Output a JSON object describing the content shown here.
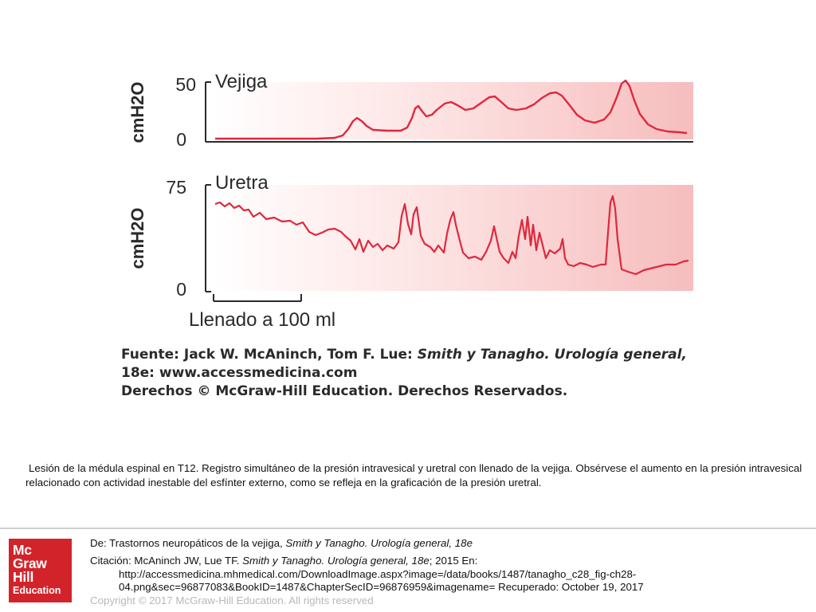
{
  "figure": {
    "top_panel": {
      "axis_unit": "cmH2O",
      "tick_high": "50",
      "tick_low": "0",
      "label": "Vejiga"
    },
    "bottom_panel": {
      "axis_unit": "cmH2O",
      "tick_high": "75",
      "tick_low": "0",
      "label": "Uretra"
    },
    "scale_bar_label": "Llenado a 100 ml",
    "source_line1_prefix": "Fuente: Jack W. McAninch, Tom F. Lue: ",
    "source_line1_title": "Smith y Tanagho. Urología general,",
    "source_line2": "18e: www.accessmedicina.com",
    "source_line3": "Derechos © McGraw-Hill Education. Derechos Reservados.",
    "colors": {
      "trace": "#e0283c",
      "band": "#f7c5c5",
      "axis": "#2a2a2a"
    }
  },
  "caption": "Lesión de la médula espinal en T12. Registro simultáneo de la presión intravesical y uretral con llenado de la vejiga. Obsérvese el aumento en la presión intravesical relacionado con actividad inestable del esfínter externo, como se refleja en la graficación de la presión uretral.",
  "logo": {
    "line1": "Mc",
    "line2": "Graw",
    "line3": "Hill",
    "line4": "Education"
  },
  "footer": {
    "from_prefix": "De: Trastornos neuropáticos de la vejiga, ",
    "from_title": "Smith y Tanagho. Urología general, 18e",
    "citation_prefix": "Citación: McAninch JW, Lue TF",
    "citation_sep": ". ",
    "citation_title": "Smith y Tanagho. Urología general, 18e",
    "citation_suffix": "; 2015 En:",
    "url_line1": "http://accessmedicina.mhmedical.com/DownloadImage.aspx?image=/data/books/1487/tanagho_c28_fig-ch28-",
    "url_line2": "04.png&sec=96877083&BookID=1487&ChapterSecID=96876959&imagename= Recuperado: October 19, 2017",
    "copyright": "Copyright © 2017 McGraw-Hill Education. All rights reserved"
  }
}
